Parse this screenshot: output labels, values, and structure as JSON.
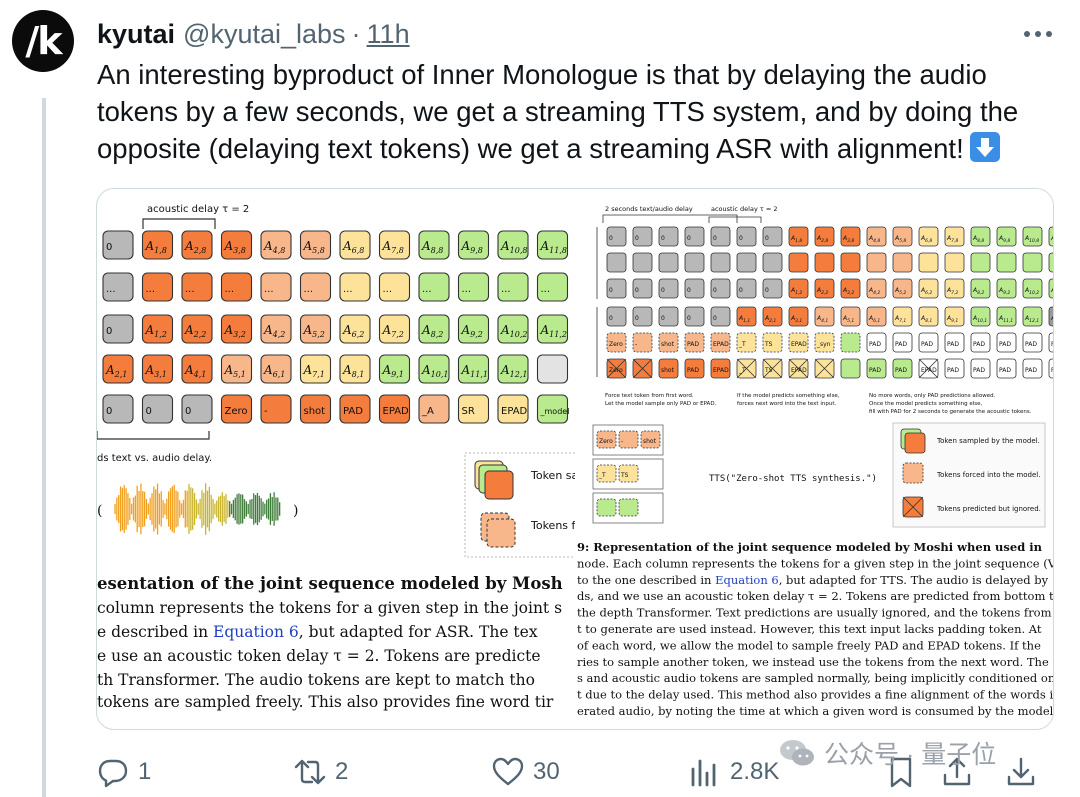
{
  "author": {
    "display_name": "kyutai",
    "handle": "@kyutai_labs",
    "separator": "·",
    "time": "11h",
    "avatar_text": "/k"
  },
  "tweet": {
    "lines": [
      "An interesting byproduct of Inner Monologue is that by delaying the audio",
      "tokens by a few seconds, we get a streaming TTS system, and by doing the",
      "opposite (delaying text tokens) we get a streaming ASR with alignment!"
    ],
    "emoji": "down-arrow-emoji"
  },
  "media": {
    "left": {
      "delay_label": "acoustic delay τ = 2",
      "row0": [
        "0",
        "A1,8",
        "A2,8",
        "A3,8",
        "A4,8",
        "A5,8",
        "A6,8",
        "A7,8",
        "A8,8",
        "A9,8",
        "A10,8",
        "A11,8"
      ],
      "row1": [
        "...",
        "...",
        "...",
        "...",
        "...",
        "...",
        "...",
        "...",
        "...",
        "...",
        "...",
        "..."
      ],
      "row2": [
        "0",
        "A1,2",
        "A2,2",
        "A3,2",
        "A4,2",
        "A5,2",
        "A6,2",
        "A7,2",
        "A8,2",
        "A9,2",
        "A10,2",
        "A11,2"
      ],
      "row3": [
        "A2,1",
        "A3,1",
        "A4,1",
        "A5,1",
        "A6,1",
        "A7,1",
        "A8,1",
        "A9,1",
        "A10,1",
        "A11,1",
        "A12,1",
        ""
      ],
      "row4": [
        "0",
        "0",
        "0",
        "Zero",
        "-",
        "shot",
        "PAD",
        "EPAD",
        "_A",
        "SR",
        "EPAD",
        "_model"
      ],
      "caption_small": "ds text vs. audio delay.",
      "legend": [
        "Token sa",
        "Tokens f"
      ],
      "caption_lines": [
        "esentation of the joint sequence modeled by Mosh",
        "column represents the tokens for a given step in the joint s",
        "e described in Equation 6, but adapted for ASR. The tex",
        "e use an acoustic token delay τ = 2. Tokens are predicte",
        "th Transformer. The audio tokens are kept to match tho",
        " tokens are sampled freely. This also provides fine word tir"
      ],
      "equation_link": "Equation 6"
    },
    "right": {
      "top_labels": [
        "2 seconds text/audio delay",
        "acoustic delay τ = 2"
      ],
      "row0": [
        "0",
        "0",
        "0",
        "0",
        "0",
        "0",
        "0",
        "A1,8",
        "A2,8",
        "A3,8",
        "A4,8",
        "A5,8",
        "A6,8",
        "A7,8",
        "A8,8",
        "A9,8",
        "A10,8",
        "A11,8"
      ],
      "row2": [
        "0",
        "0",
        "0",
        "0",
        "0",
        "0",
        "0",
        "A1,2",
        "A2,2",
        "A3,2",
        "A4,2",
        "A5,2",
        "A6,2",
        "A7,2",
        "A8,2",
        "A9,2",
        "A10,2",
        "A11,2"
      ],
      "row3": [
        "0",
        "0",
        "0",
        "0",
        "0",
        "A1,1",
        "A2,1",
        "A3,1",
        "A4,1",
        "A5,1",
        "A6,1",
        "A7,1",
        "A8,1",
        "A9,1",
        "A10,1",
        "A11,1",
        "A12,1",
        "A13,1"
      ],
      "row4": [
        "Zero",
        "-",
        "shot",
        "PAD",
        "EPAD",
        "_T",
        "TS",
        "EPAD",
        "_syn",
        "",
        "PAD",
        "PAD",
        "PAD",
        "PAD",
        "PAD",
        "PAD",
        "PAD",
        "PAD"
      ],
      "row5": [
        "Zero",
        "",
        "shot",
        "PAD",
        "EPAD",
        "_T",
        "TS",
        "EPAD",
        "",
        "",
        "PAD",
        "PAD",
        "EPAD",
        "PAD",
        "PAD",
        "PAD",
        "PAD",
        "PAD"
      ],
      "notes": [
        "Force text token from first word.",
        "Let the model sample only PAD or EPAD.",
        "If the model predicts something else,",
        "forces next word into the text input.",
        "No more words, only PAD predictions allowed.",
        "Once the model predicts something else,",
        "fill with PAD for 2 seconds to generate the acoustic tokens."
      ],
      "mini_tokens": [
        "Zero",
        "-",
        "shot",
        "_T",
        "TS"
      ],
      "tts_call": "TTS(\"Zero-shot TTS synthesis.\")",
      "legend": [
        "Token sampled by the model.",
        "Tokens forced into the model.",
        "Tokens predicted but ignored."
      ],
      "caption_lines": [
        "9: Representation of the joint sequence modeled by Moshi when used in",
        "node. Each column represents the tokens for a given step in the joint sequence (Vs,k).",
        "to the one described in Equation 6, but adapted for TTS. The audio is delayed by",
        "ds, and we use an acoustic token delay τ = 2. Tokens are predicted from bottom to",
        "the depth Transformer. Text predictions are usually ignored, and the tokens from",
        "t to generate are used instead. However, this text input lacks padding token. At",
        "of each word, we allow the model to sample freely PAD and EPAD tokens. If the",
        "ries to sample another token, we instead use the tokens from the next word. The",
        "s and acoustic audio tokens are sampled normally, being implicitly conditioned on",
        "t due to the delay used. This method also provides a fine alignment of the words in",
        "erated audio, by noting the time at which a given word is consumed by the model."
      ]
    }
  },
  "actions": {
    "reply_count": "1",
    "retweet_count": "2",
    "like_count": "30",
    "views_count": "2.8K"
  },
  "watermark": "公众号 · 量子位",
  "colors": {
    "gray": "#b8b8b8",
    "orange_dark": "#f47c3c",
    "orange_light": "#f8b78a",
    "yellow": "#fde39a",
    "green": "#b9ea8e",
    "link_blue": "#1f3fbf"
  }
}
